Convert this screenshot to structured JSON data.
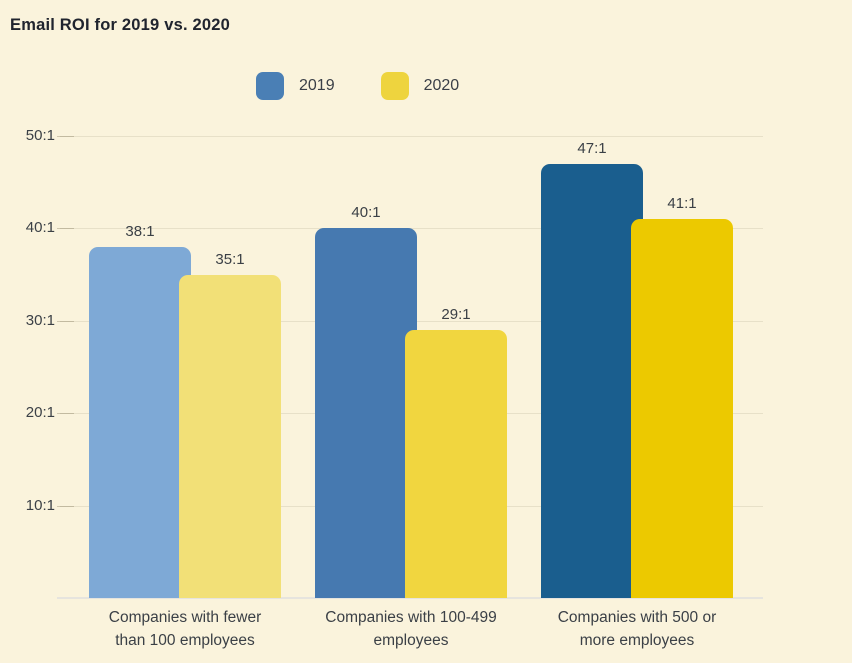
{
  "title": "Email ROI for 2019 vs. 2020",
  "legend": [
    {
      "label": "2019",
      "color": "#4a7fb5"
    },
    {
      "label": "2020",
      "color": "#eed43e"
    }
  ],
  "colors": {
    "background": "#faf3dc",
    "axis_line": "#e6e4de",
    "text": "#3b4046",
    "title_text": "#20242e"
  },
  "chart_data": {
    "type": "bar",
    "title": "Email ROI for 2019 vs. 2020",
    "categories": [
      "Companies with fewer than 100 employees",
      "Companies with 100-499 employees",
      "Companies with 500 or more employees"
    ],
    "category_lines": [
      [
        "Companies with fewer",
        "than 100 employees"
      ],
      [
        "Companies with 100-499",
        "employees"
      ],
      [
        "Companies with 500 or",
        "more employees"
      ]
    ],
    "series": [
      {
        "name": "2019",
        "values": [
          38,
          40,
          47
        ],
        "colors": [
          "#7ea9d6",
          "#4679b0",
          "#1a5e8e"
        ]
      },
      {
        "name": "2020",
        "values": [
          35,
          29,
          41
        ],
        "colors": [
          "#f2e077",
          "#f1d63f",
          "#ecc900"
        ]
      }
    ],
    "value_labels": [
      [
        "38:1",
        "35:1"
      ],
      [
        "40:1",
        "29:1"
      ],
      [
        "47:1",
        "41:1"
      ]
    ],
    "yticks": [
      "10:1",
      "20:1",
      "30:1",
      "40:1",
      "50:1"
    ],
    "ytick_values": [
      10,
      20,
      30,
      40,
      50
    ],
    "ylim": [
      0,
      50
    ],
    "grid": true,
    "legend_position": "top",
    "xlabel": "",
    "ylabel": ""
  }
}
